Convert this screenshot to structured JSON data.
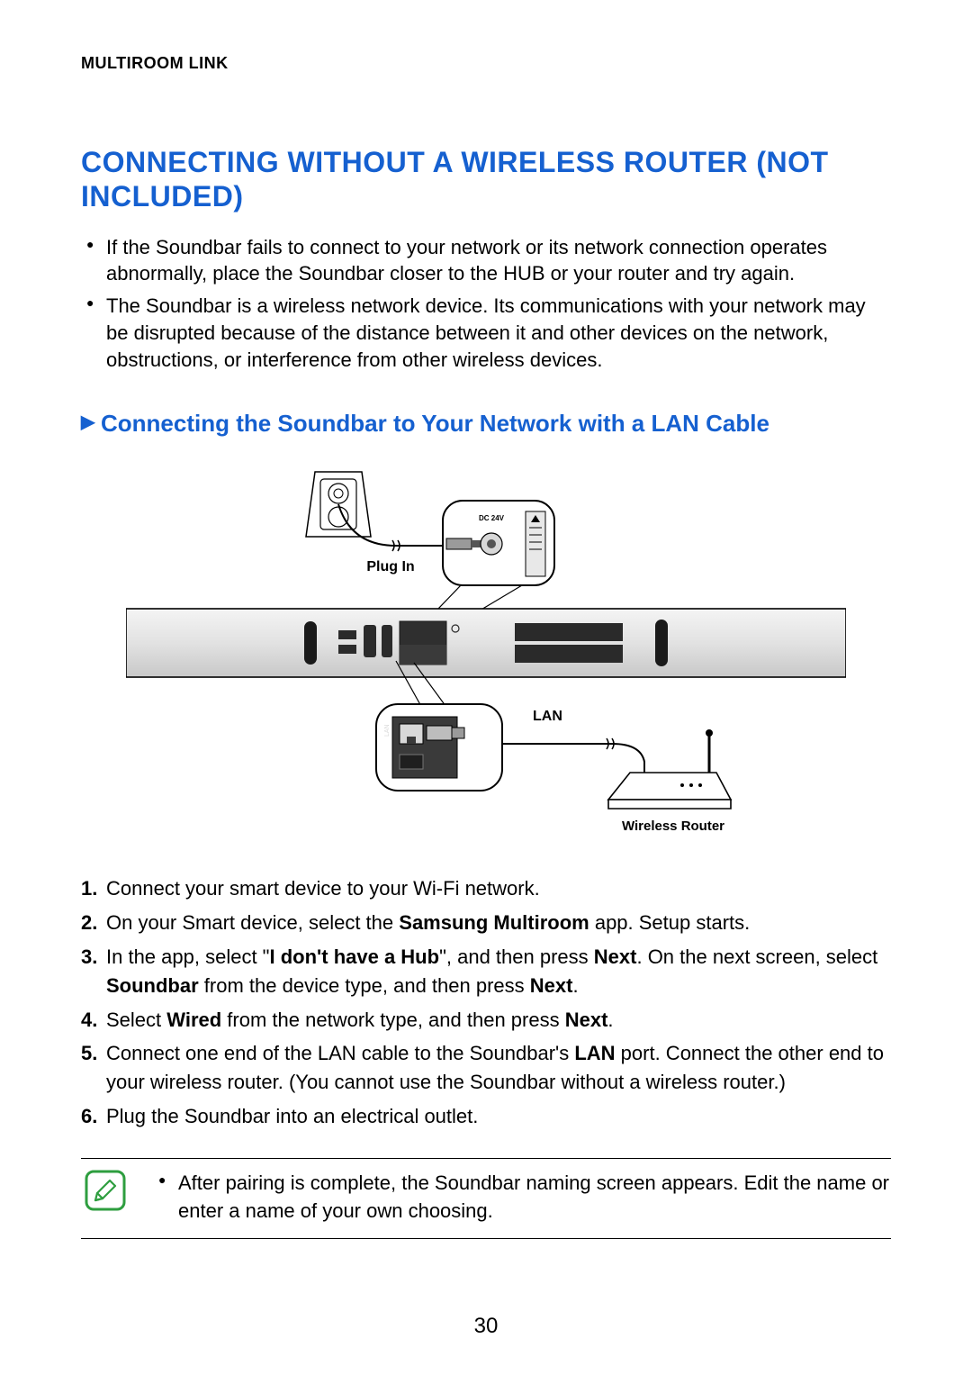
{
  "header": {
    "section_label": "MULTIROOM LINK"
  },
  "title": "CONNECTING WITHOUT A WIRELESS ROUTER (NOT INCLUDED)",
  "intro_bullets": [
    "If the Soundbar fails to connect to your network or its network connection operates abnormally, place the Soundbar closer to the HUB or your router and try again.",
    "The Soundbar is a wireless network device. Its communications with your network may be disrupted because of the distance between it and other devices on the network, obstructions, or interference from other wireless devices."
  ],
  "subheading": "Connecting the Soundbar to Your Network with a LAN Cable",
  "diagram": {
    "plug_in_label": "Plug In",
    "lan_label": "LAN",
    "router_label": "Wireless Router",
    "dc_label": "DC 24V",
    "colors": {
      "outline": "#000000",
      "bar_fill_top": "#f2f2f2",
      "bar_fill_bottom": "#cfcfcf",
      "grille": "#3a3a3a",
      "callout_stroke": "#000000",
      "callout_fill": "#ffffff"
    }
  },
  "steps": [
    {
      "num": "1.",
      "html": "Connect your smart device to your Wi-Fi network."
    },
    {
      "num": "2.",
      "html": "On your Smart device, select the <b>Samsung Multiroom</b> app. Setup starts."
    },
    {
      "num": "3.",
      "html": "In the app, select \"<b>I don't have a Hub</b>\", and then press <b>Next</b>. On the next screen, select <b>Soundbar</b> from the device type, and then press <b>Next</b>."
    },
    {
      "num": "4.",
      "html": "Select <b>Wired</b> from the network type, and then press <b>Next</b>."
    },
    {
      "num": "5.",
      "html": "Connect one end of the LAN cable to the Soundbar's <b>LAN</b> port. Connect the other end to your wireless router. (You cannot use the Soundbar without a wireless router.)"
    },
    {
      "num": "6.",
      "html": "Plug the Soundbar into an electrical outlet."
    }
  ],
  "note": "After pairing is complete, the Soundbar naming screen appears. Edit the name or enter a name of your own choosing.",
  "page_number": "30",
  "note_icon_colors": {
    "border": "#2e9e3f",
    "fill": "#ffffff",
    "pencil": "#2e9e3f"
  }
}
